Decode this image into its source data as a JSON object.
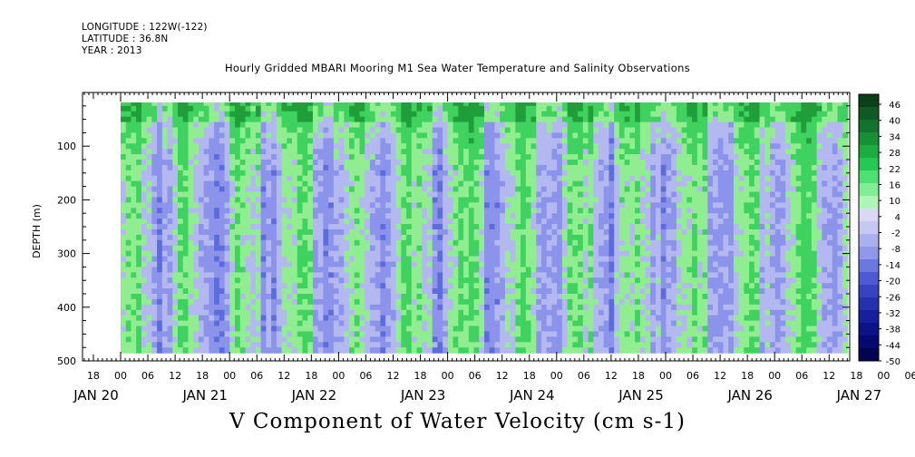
{
  "header": {
    "longitude": "LONGITUDE : 122W(-122)",
    "latitude": "LATITUDE : 36.8N",
    "year": "YEAR : 2013"
  },
  "chart_data": {
    "type": "heatmap",
    "title": "Hourly Gridded MBARI Mooring M1 Sea Water Temperature and Salinity Observations",
    "footer_title": "V Component of Water Velocity (cm s-1)",
    "ylabel": "DEPTH (m)",
    "xlabel": "",
    "ylim": [
      0,
      500
    ],
    "yticks": [
      "100",
      "200",
      "300",
      "400",
      "500"
    ],
    "ytick_values": [
      100,
      200,
      300,
      400,
      500
    ],
    "x_hour_labels": [
      "18",
      "00",
      "06",
      "12",
      "18",
      "00",
      "06",
      "12",
      "18",
      "00",
      "06",
      "12",
      "18",
      "00",
      "06",
      "12",
      "18",
      "00",
      "06",
      "12",
      "18",
      "00",
      "06",
      "12",
      "18",
      "00",
      "06",
      "12",
      "18",
      "00",
      "06",
      "12"
    ],
    "x_day_labels": [
      "JAN 20",
      "JAN 21",
      "JAN 22",
      "JAN 23",
      "JAN 24",
      "JAN 25",
      "JAN 26",
      "JAN 27"
    ],
    "x_start_hour_jan20": 18,
    "data_start": "JAN 20 00",
    "data_end": "JAN 27 15",
    "data_depth_range": [
      20,
      490
    ],
    "colorbar_levels": [
      "46",
      "40",
      "34",
      "28",
      "22",
      "16",
      "10",
      "4",
      "-2",
      "-8",
      "-14",
      "-20",
      "-26",
      "-32",
      "-38",
      "-44",
      "-50"
    ],
    "colorbar_range": [
      -50,
      50
    ],
    "grid": false,
    "colors": {
      "strong_positive": "#1f9e3a",
      "positive": "#3fd25e",
      "weak_positive": "#90ee90",
      "weak_negative": "#b4b8f0",
      "negative": "#8b93ea",
      "strong_negative": "#5c6cdc"
    },
    "colorbar_colors": [
      "#0a3f17",
      "#0f5a22",
      "#12732c",
      "#179036",
      "#1cad41",
      "#25c850",
      "#4ee070",
      "#7fee94",
      "#b0f5b8",
      "#d9d9f6",
      "#c6c8f2",
      "#aab0ee",
      "#8f98ea",
      "#6b78e0",
      "#4c5ad4",
      "#3644c2",
      "#2431ad",
      "#15209a",
      "#0c1385",
      "#060a6e",
      "#02044f"
    ],
    "pattern": "Vertical bands of northward (green) and southward (blue) flow alternating on a roughly half-day cycle; strongest positive values concentrated in the upper 150 m."
  }
}
